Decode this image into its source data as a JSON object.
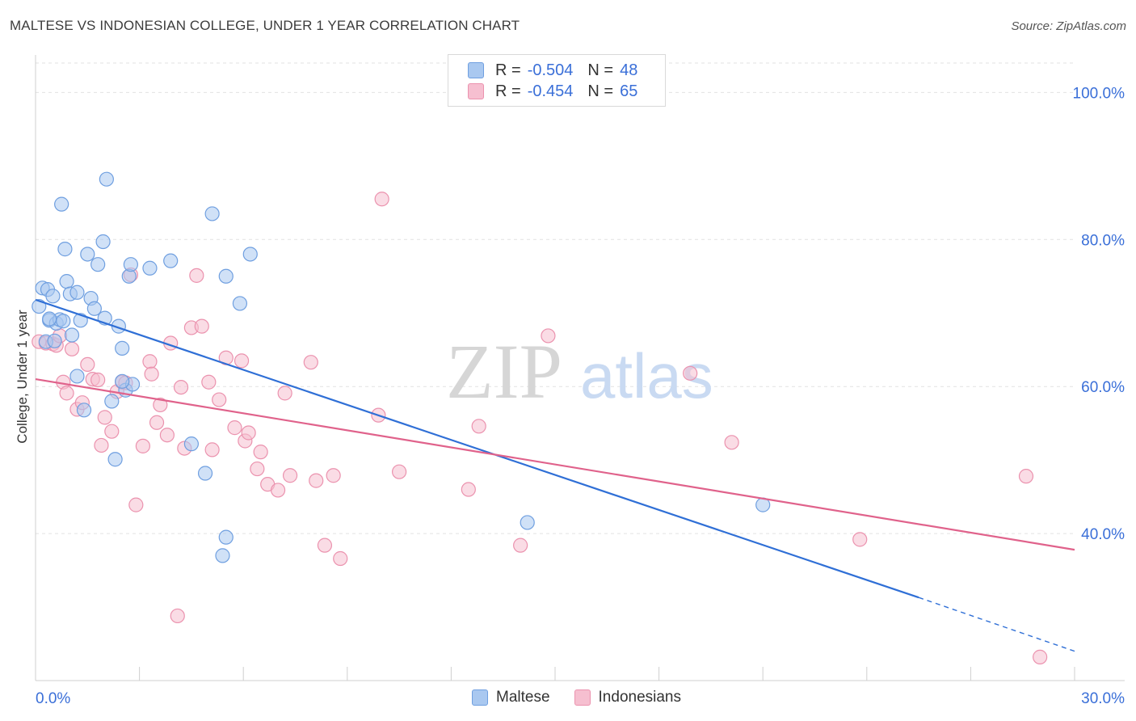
{
  "title": "MALTESE VS INDONESIAN COLLEGE, UNDER 1 YEAR CORRELATION CHART",
  "source": "Source: ZipAtlas.com",
  "watermark": {
    "zip": "ZIP",
    "atlas": "atlas"
  },
  "legend": {
    "r_label": "R =",
    "n_label": "N =",
    "maltese": {
      "r": "-0.504",
      "n": "48"
    },
    "indonesians": {
      "r": "-0.454",
      "n": "65"
    }
  },
  "colors": {
    "maltese_fill": "#a9c8f0",
    "maltese_stroke": "#6f9fe0",
    "maltese_line": "#2f6fd6",
    "indonesians_fill": "#f6bfd0",
    "indonesians_stroke": "#eb92ae",
    "indonesians_line": "#e0628b",
    "axis_text": "#3a6fd8",
    "grid": "#e2e2e2"
  },
  "chart_data": {
    "type": "scatter",
    "title": "MALTESE VS INDONESIAN COLLEGE, UNDER 1 YEAR CORRELATION CHART",
    "xlabel": "",
    "ylabel": "College, Under 1 year",
    "xlim": [
      0,
      30
    ],
    "ylim": [
      20,
      104
    ],
    "x_tick_labels": [
      "0.0%",
      "30.0%"
    ],
    "y_ticks": [
      40,
      60,
      80,
      100
    ],
    "y_tick_labels": [
      "40.0%",
      "60.0%",
      "80.0%",
      "100.0%"
    ],
    "legend_position": "bottom-center",
    "series": [
      {
        "name": "Maltese",
        "r": -0.504,
        "n": 48,
        "trend": {
          "x0": 0,
          "y0": 71.8,
          "x1": 25.5,
          "y1": 31.3,
          "dash_to_x": 30,
          "dash_to_y": 24.0
        },
        "points": [
          [
            0.1,
            70.9
          ],
          [
            0.2,
            73.4
          ],
          [
            0.3,
            66.1
          ],
          [
            0.35,
            73.2
          ],
          [
            0.4,
            69.0
          ],
          [
            0.5,
            72.3
          ],
          [
            0.55,
            66.2
          ],
          [
            0.6,
            68.6
          ],
          [
            0.7,
            69.1
          ],
          [
            0.75,
            84.8
          ],
          [
            0.85,
            78.7
          ],
          [
            0.9,
            74.3
          ],
          [
            1.0,
            72.6
          ],
          [
            1.05,
            67.0
          ],
          [
            1.2,
            61.4
          ],
          [
            1.3,
            69.0
          ],
          [
            1.4,
            56.8
          ],
          [
            1.5,
            78.0
          ],
          [
            1.6,
            72.0
          ],
          [
            1.7,
            70.6
          ],
          [
            1.8,
            76.6
          ],
          [
            1.95,
            79.7
          ],
          [
            2.0,
            69.3
          ],
          [
            2.05,
            88.2
          ],
          [
            2.2,
            58.0
          ],
          [
            2.3,
            50.1
          ],
          [
            2.4,
            68.2
          ],
          [
            2.5,
            65.2
          ],
          [
            2.6,
            59.5
          ],
          [
            2.7,
            75.0
          ],
          [
            2.75,
            76.6
          ],
          [
            2.8,
            60.3
          ],
          [
            3.3,
            76.1
          ],
          [
            3.9,
            77.1
          ],
          [
            4.5,
            52.2
          ],
          [
            4.9,
            48.2
          ],
          [
            5.1,
            83.5
          ],
          [
            5.4,
            37.0
          ],
          [
            5.5,
            39.5
          ],
          [
            5.5,
            75.0
          ],
          [
            5.9,
            71.3
          ],
          [
            6.2,
            78.0
          ],
          [
            14.2,
            41.5
          ],
          [
            21.0,
            43.9
          ],
          [
            0.4,
            69.2
          ],
          [
            1.2,
            72.8
          ],
          [
            2.5,
            60.7
          ],
          [
            0.8,
            68.9
          ]
        ]
      },
      {
        "name": "Indonesians",
        "r": -0.454,
        "n": 65,
        "trend": {
          "x0": 0,
          "y0": 61.0,
          "x1": 30,
          "y1": 37.8
        },
        "points": [
          [
            0.1,
            66.1
          ],
          [
            0.3,
            65.9
          ],
          [
            0.5,
            65.8
          ],
          [
            0.6,
            65.6
          ],
          [
            0.7,
            66.9
          ],
          [
            0.8,
            60.6
          ],
          [
            0.9,
            59.1
          ],
          [
            1.05,
            65.1
          ],
          [
            1.2,
            56.9
          ],
          [
            1.35,
            57.8
          ],
          [
            1.5,
            63.0
          ],
          [
            1.65,
            61.0
          ],
          [
            1.8,
            60.9
          ],
          [
            1.9,
            52.0
          ],
          [
            2.0,
            55.8
          ],
          [
            2.2,
            53.9
          ],
          [
            2.35,
            59.3
          ],
          [
            2.5,
            60.6
          ],
          [
            2.6,
            60.5
          ],
          [
            2.75,
            75.2
          ],
          [
            2.9,
            43.9
          ],
          [
            3.1,
            51.9
          ],
          [
            3.3,
            63.4
          ],
          [
            3.35,
            61.7
          ],
          [
            3.6,
            57.5
          ],
          [
            3.5,
            55.1
          ],
          [
            3.8,
            53.4
          ],
          [
            3.9,
            65.9
          ],
          [
            4.1,
            28.8
          ],
          [
            4.2,
            59.9
          ],
          [
            4.3,
            51.6
          ],
          [
            4.5,
            68.0
          ],
          [
            4.65,
            75.1
          ],
          [
            4.8,
            68.2
          ],
          [
            5.0,
            60.6
          ],
          [
            5.1,
            51.4
          ],
          [
            5.3,
            58.2
          ],
          [
            5.5,
            63.9
          ],
          [
            5.75,
            54.4
          ],
          [
            5.95,
            63.5
          ],
          [
            6.05,
            52.6
          ],
          [
            6.15,
            53.7
          ],
          [
            6.4,
            48.8
          ],
          [
            6.5,
            51.1
          ],
          [
            6.7,
            46.7
          ],
          [
            7.0,
            45.9
          ],
          [
            7.2,
            59.1
          ],
          [
            7.35,
            47.9
          ],
          [
            7.95,
            63.3
          ],
          [
            8.1,
            47.2
          ],
          [
            8.35,
            38.4
          ],
          [
            8.6,
            47.9
          ],
          [
            8.8,
            36.6
          ],
          [
            9.9,
            56.1
          ],
          [
            10.0,
            85.5
          ],
          [
            10.5,
            48.4
          ],
          [
            12.5,
            46.0
          ],
          [
            12.8,
            54.6
          ],
          [
            14.0,
            38.4
          ],
          [
            14.8,
            66.9
          ],
          [
            18.9,
            61.8
          ],
          [
            20.1,
            52.4
          ],
          [
            23.8,
            39.2
          ],
          [
            28.6,
            47.8
          ],
          [
            29.0,
            23.2
          ]
        ]
      }
    ]
  }
}
